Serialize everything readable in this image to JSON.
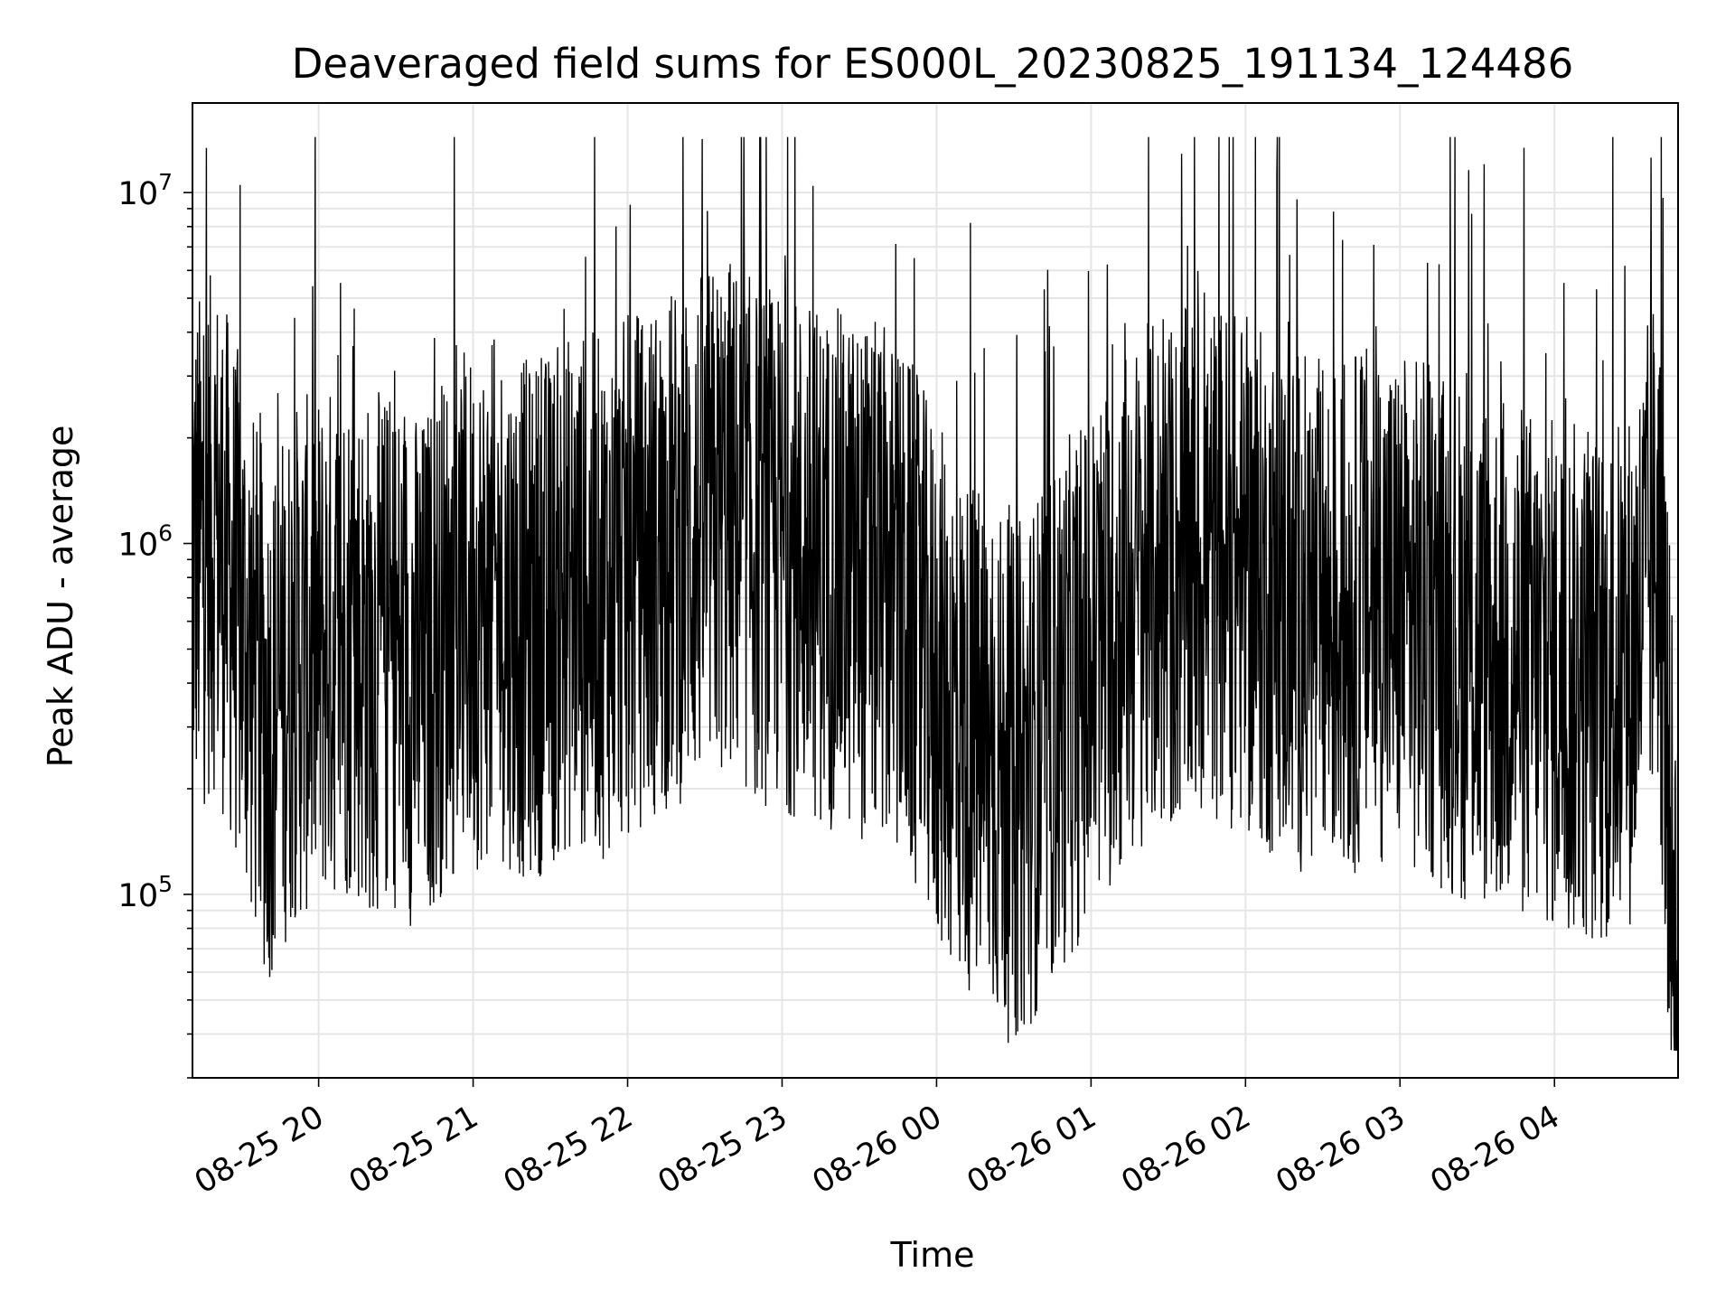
{
  "chart_data": {
    "type": "line",
    "title": "Deaveraged field sums for ES000L_20230825_191134_124486",
    "xlabel": "Time",
    "ylabel": "Peak ADU - average",
    "yscale": "log",
    "ylim": [
      30000,
      18000000
    ],
    "xlim": [
      "08-25 19:11",
      "08-26 04:48"
    ],
    "x_ticks": [
      "08-25 20",
      "08-25 21",
      "08-25 22",
      "08-25 23",
      "08-26 00",
      "08-26 01",
      "08-26 02",
      "08-26 03",
      "08-26 04"
    ],
    "y_ticks": [
      {
        "base": "10",
        "exp": "5",
        "value": 100000
      },
      {
        "base": "10",
        "exp": "6",
        "value": 1000000
      },
      {
        "base": "10",
        "exp": "7",
        "value": 10000000
      }
    ],
    "grid": true,
    "line_color": "#000000",
    "grid_color": "#e5e5e5",
    "series": [
      {
        "note_sampling": "dense noisy trace; representative samples listed",
        "x": [
          "08-25 19:11",
          "08-25 19:20",
          "08-25 19:30",
          "08-25 19:40",
          "08-25 19:50",
          "08-25 20:00",
          "08-25 20:10",
          "08-25 20:20",
          "08-25 20:30",
          "08-25 20:40",
          "08-25 20:50",
          "08-25 21:00",
          "08-25 21:10",
          "08-25 21:20",
          "08-25 21:30",
          "08-25 21:40",
          "08-25 21:50",
          "08-25 22:00",
          "08-25 22:10",
          "08-25 22:20",
          "08-25 22:30",
          "08-25 22:40",
          "08-25 22:50",
          "08-25 23:00",
          "08-25 23:10",
          "08-25 23:20",
          "08-25 23:30",
          "08-25 23:40",
          "08-25 23:50",
          "08-26 00:00",
          "08-26 00:10",
          "08-26 00:20",
          "08-26 00:30",
          "08-26 00:40",
          "08-26 00:50",
          "08-26 01:00",
          "08-26 01:10",
          "08-26 01:20",
          "08-26 01:30",
          "08-26 01:40",
          "08-26 01:50",
          "08-26 02:00",
          "08-26 02:10",
          "08-26 02:20",
          "08-26 02:30",
          "08-26 02:40",
          "08-26 02:50",
          "08-26 03:00",
          "08-26 03:10",
          "08-26 03:20",
          "08-26 03:30",
          "08-26 03:40",
          "08-26 03:50",
          "08-26 04:00",
          "08-26 04:10",
          "08-26 04:20",
          "08-26 04:30",
          "08-26 04:40",
          "08-26 04:48"
        ],
        "values": [
          900000,
          1100000,
          600000,
          300000,
          450000,
          500000,
          550000,
          480000,
          500000,
          420000,
          600000,
          650000,
          700000,
          600000,
          650000,
          750000,
          700000,
          800000,
          900000,
          1000000,
          1100000,
          1200000,
          1000000,
          950000,
          900000,
          850000,
          800000,
          750000,
          600000,
          400000,
          300000,
          250000,
          200000,
          260000,
          350000,
          450000,
          600000,
          750000,
          800000,
          850000,
          900000,
          800000,
          700000,
          650000,
          600000,
          620000,
          700000,
          650000,
          600000,
          550000,
          500000,
          480000,
          450000,
          420000,
          400000,
          380000,
          450000,
          1100000,
          50000
        ]
      }
    ]
  }
}
